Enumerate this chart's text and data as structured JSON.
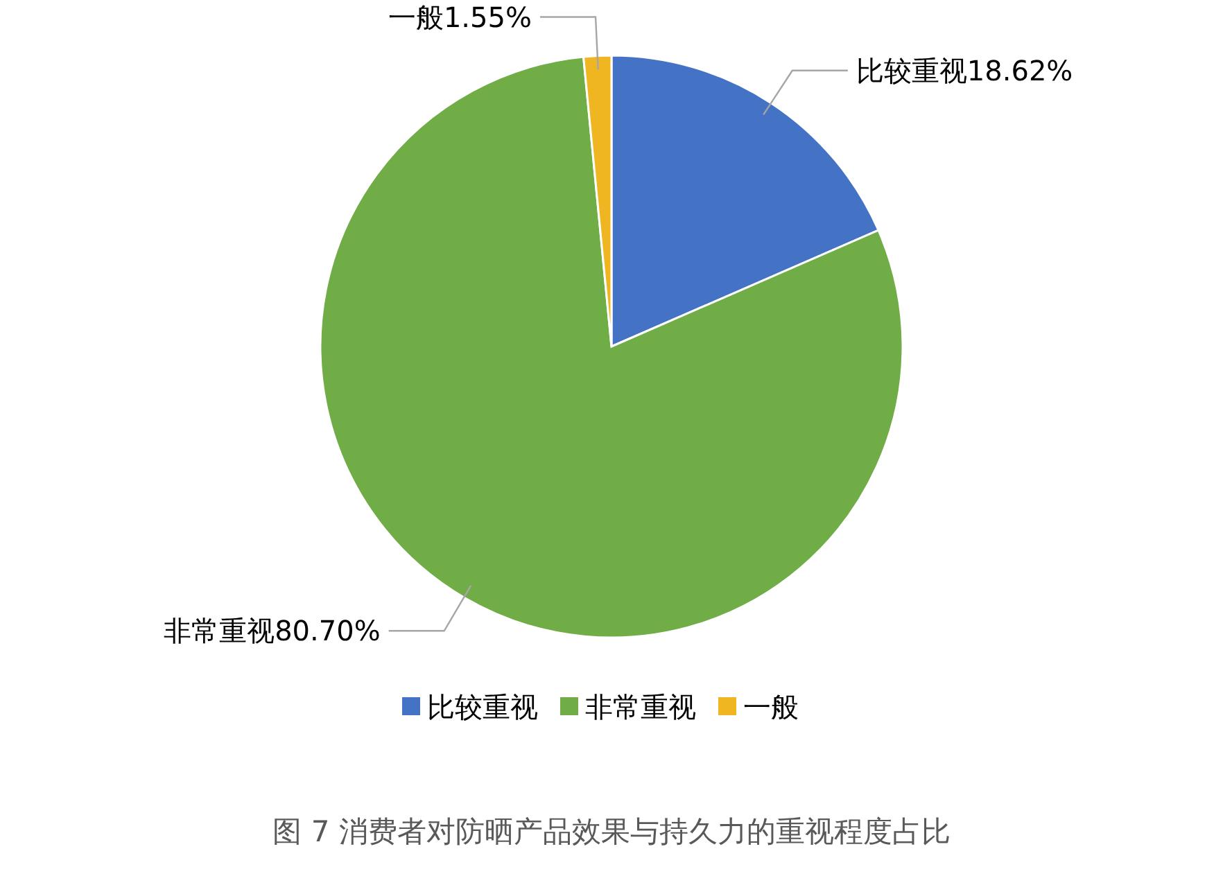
{
  "chart_data": {
    "type": "pie",
    "categories": [
      "比较重视",
      "非常重视",
      "一般"
    ],
    "values": [
      18.62,
      80.7,
      1.55
    ],
    "colors": [
      "#4472c4",
      "#70ad47",
      "#f0b622"
    ],
    "value_labels": [
      "比较重视18.62%",
      "非常重视80.70%",
      "一般1.55%"
    ],
    "legend": "bottom",
    "annotations": [
      "图 7 消费者对防晒产品效果与持久力的重视程度占比"
    ]
  }
}
